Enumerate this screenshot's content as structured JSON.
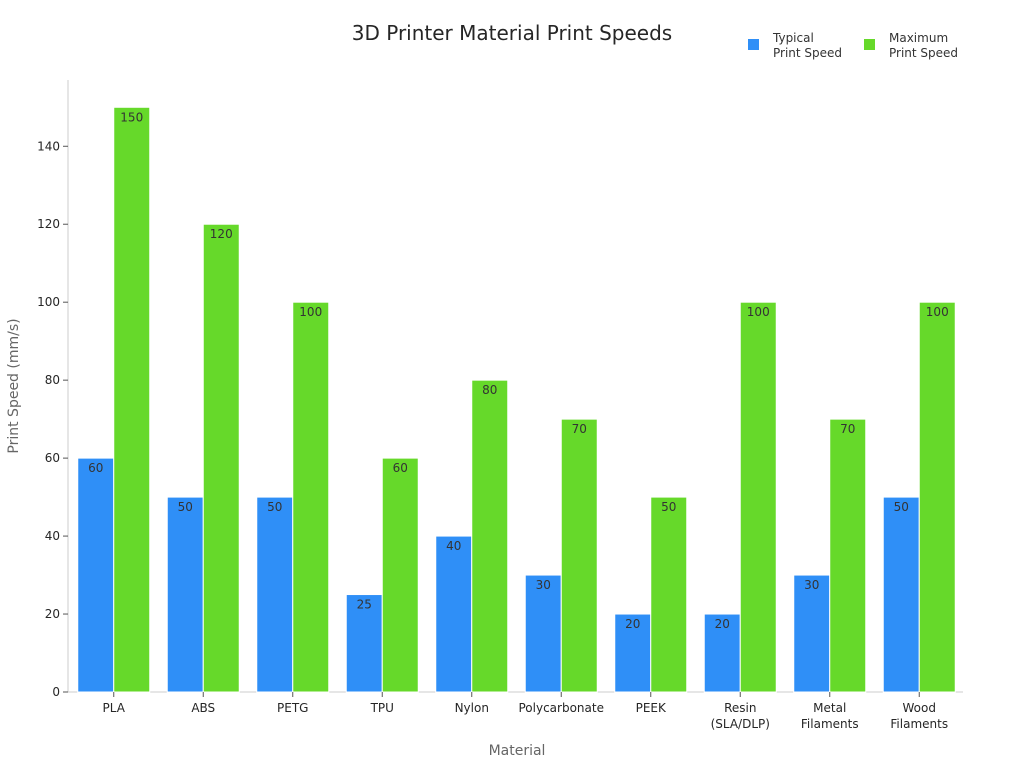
{
  "chart_data": {
    "type": "bar",
    "title": "3D Printer Material Print Speeds",
    "xlabel": "Material",
    "ylabel": "Print Speed (mm/s)",
    "ylim": [
      0,
      157
    ],
    "yticks": [
      0,
      20,
      40,
      60,
      80,
      100,
      120,
      140
    ],
    "grid": false,
    "legend_position": "top-right",
    "categories": [
      [
        "PLA"
      ],
      [
        "ABS"
      ],
      [
        "PETG"
      ],
      [
        "TPU"
      ],
      [
        "Nylon"
      ],
      [
        "Polycarbonate"
      ],
      [
        "PEEK"
      ],
      [
        "Resin",
        "(SLA/DLP)"
      ],
      [
        "Metal",
        "Filaments"
      ],
      [
        "Wood",
        "Filaments"
      ]
    ],
    "series": [
      {
        "name": [
          "Typical",
          "Print Speed"
        ],
        "color": "#2f8ff7",
        "values": [
          60,
          50,
          50,
          25,
          40,
          30,
          20,
          20,
          30,
          50
        ]
      },
      {
        "name": [
          "Maximum",
          "Print Speed"
        ],
        "color": "#66d92a",
        "values": [
          150,
          120,
          100,
          60,
          80,
          70,
          50,
          100,
          70,
          100
        ]
      }
    ]
  }
}
